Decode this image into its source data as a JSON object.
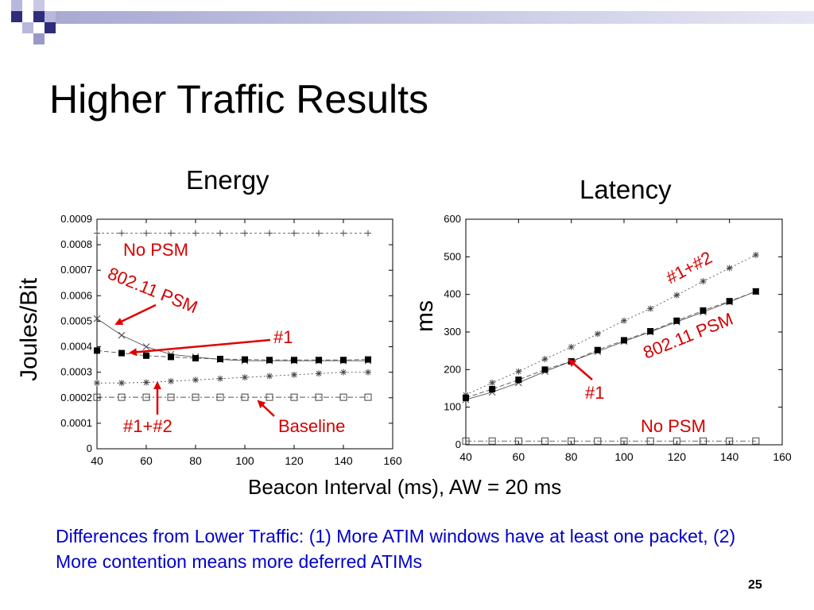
{
  "slide": {
    "title": "Higher Traffic Results",
    "page_number": "25"
  },
  "footer_note": "Differences from Lower Traffic: (1) More ATIM windows have at least one packet, (2) More contention means more deferred ATIMs",
  "shared_xlabel": "Beacon Interval (ms), AW = 20 ms",
  "colors": {
    "annotation": "#d40000",
    "arrow": "#e00000",
    "note_text": "#0000cc",
    "deco_dark": "#2d2d7a",
    "deco_light": "#b3b3d9"
  },
  "chart_data": [
    {
      "type": "line",
      "title": "Energy",
      "ylabel": "Joules/Bit",
      "xlabel": "",
      "xlim": [
        40,
        160
      ],
      "ylim": [
        0,
        0.0009
      ],
      "x_ticks": [
        "40",
        "60",
        "80",
        "100",
        "120",
        "140",
        "160"
      ],
      "y_ticks": [
        "0",
        "0.0001",
        "0.0002",
        "0.0003",
        "0.0004",
        "0.0005",
        "0.0006",
        "0.0007",
        "0.0008",
        "0.0009"
      ],
      "grid": false,
      "legend": "none",
      "x": [
        40,
        50,
        60,
        70,
        80,
        90,
        100,
        110,
        120,
        130,
        140,
        150
      ],
      "series": [
        {
          "id": "nopsm",
          "marker": "plus",
          "dash": "3,3",
          "values": [
            0.000845,
            0.000845,
            0.000845,
            0.000845,
            0.000845,
            0.000845,
            0.000845,
            0.000845,
            0.000845,
            0.000845,
            0.000845,
            0.000845
          ]
        },
        {
          "id": "psm",
          "marker": "x",
          "dash": "",
          "values": [
            0.00051,
            0.000445,
            0.0004,
            0.00037,
            0.00036,
            0.00035,
            0.000345,
            0.000345,
            0.000345,
            0.000345,
            0.000345,
            0.000345
          ]
        },
        {
          "id": "fix1",
          "marker": "square",
          "dash": "6,3",
          "values": [
            0.000385,
            0.000375,
            0.000365,
            0.00036,
            0.000355,
            0.000352,
            0.00035,
            0.000348,
            0.000348,
            0.000348,
            0.000348,
            0.00035
          ]
        },
        {
          "id": "fix12",
          "marker": "star",
          "dash": "2,3",
          "values": [
            0.000258,
            0.000258,
            0.00026,
            0.000265,
            0.00027,
            0.000275,
            0.00028,
            0.000285,
            0.00029,
            0.000295,
            0.0003,
            0.0003
          ]
        },
        {
          "id": "baseline",
          "marker": "box",
          "dash": "7,3,2,3",
          "values": [
            0.000202,
            0.000202,
            0.000202,
            0.000202,
            0.000202,
            0.000202,
            0.000202,
            0.000202,
            0.000202,
            0.000202,
            0.000202,
            0.000202
          ]
        }
      ],
      "annotations": [
        {
          "text": "No PSM"
        },
        {
          "text": "802.11 PSM"
        },
        {
          "text": "#1"
        },
        {
          "text": "#1+#2"
        },
        {
          "text": "Baseline"
        }
      ]
    },
    {
      "type": "line",
      "title": "Latency",
      "ylabel": "ms",
      "xlabel": "",
      "xlim": [
        40,
        160
      ],
      "ylim": [
        0,
        600
      ],
      "x_ticks": [
        "40",
        "60",
        "80",
        "100",
        "120",
        "140",
        "160"
      ],
      "y_ticks": [
        "0",
        "100",
        "200",
        "300",
        "400",
        "500",
        "600"
      ],
      "grid": false,
      "legend": "none",
      "x": [
        40,
        50,
        60,
        70,
        80,
        90,
        100,
        110,
        120,
        130,
        140,
        150
      ],
      "series": [
        {
          "id": "fix12",
          "marker": "star",
          "dash": "2,3",
          "values": [
            133,
            165,
            195,
            228,
            260,
            295,
            330,
            362,
            398,
            435,
            470,
            505
          ]
        },
        {
          "id": "psm",
          "marker": "x",
          "dash": "",
          "values": [
            120,
            140,
            165,
            195,
            222,
            248,
            275,
            300,
            327,
            353,
            380,
            408
          ]
        },
        {
          "id": "fix1",
          "marker": "square",
          "dash": "6,3",
          "values": [
            125,
            148,
            173,
            200,
            222,
            252,
            278,
            302,
            330,
            357,
            382,
            408
          ]
        },
        {
          "id": "nopsm",
          "marker": "box",
          "dash": "7,3,2,3",
          "values": [
            10,
            10,
            10,
            10,
            10,
            10,
            10,
            10,
            10,
            10,
            10,
            10
          ]
        }
      ],
      "annotations": [
        {
          "text": "#1+#2"
        },
        {
          "text": "802.11 PSM"
        },
        {
          "text": "#1"
        },
        {
          "text": "No PSM"
        }
      ]
    }
  ]
}
